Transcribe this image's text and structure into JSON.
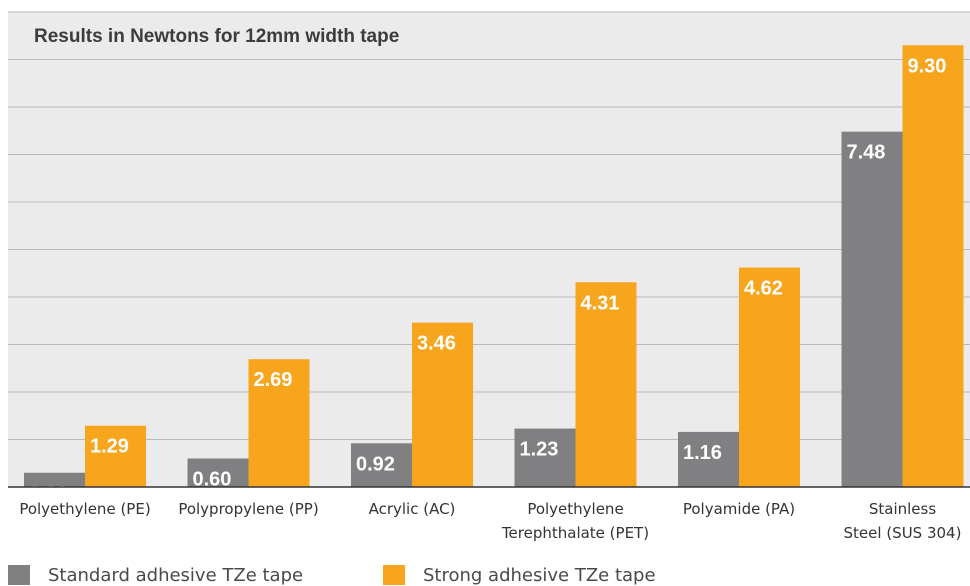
{
  "chart_data": {
    "type": "bar",
    "title": "Results in Newtons for 12mm width tape",
    "categories": [
      [
        "Polyethylene (PE)"
      ],
      [
        "Polypropylene (PP)"
      ],
      [
        "Acrylic (AC)"
      ],
      [
        "Polyethylene",
        "Terephthalate (PET)"
      ],
      [
        "Polyamide (PA)"
      ],
      [
        "Stainless",
        "Steel (SUS 304)"
      ]
    ],
    "series": [
      {
        "name": "Standard adhesive TZe tape",
        "color": "#808083",
        "values": [
          0.3,
          0.6,
          0.92,
          1.23,
          1.16,
          7.48
        ],
        "labels": [
          "0.30",
          "0.60",
          "0.92",
          "1.23",
          "1.16",
          "7.48"
        ]
      },
      {
        "name": "Strong adhesive TZe tape",
        "color": "#f7a51d",
        "values": [
          1.29,
          2.69,
          3.46,
          4.31,
          4.62,
          9.3
        ],
        "labels": [
          "1.29",
          "2.69",
          "3.46",
          "4.31",
          "4.62",
          "9.30"
        ]
      }
    ],
    "ylim": [
      0,
      10
    ],
    "gridlines": true,
    "legend_position": "bottom"
  }
}
